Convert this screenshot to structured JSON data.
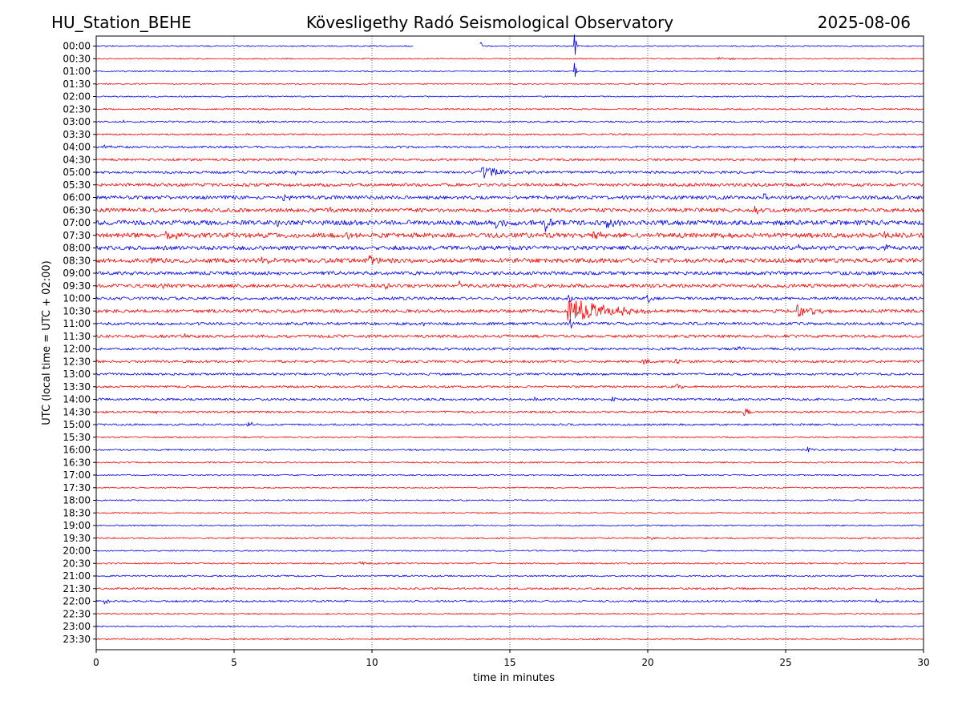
{
  "header": {
    "station": "HU_Station_BEHE",
    "observatory": "Kövesligethy Radó Seismological Observatory",
    "date": "2025-08-06"
  },
  "chart_data": {
    "type": "line",
    "title": "Kövesligethy Radó Seismological Observatory",
    "xlabel": "time in minutes",
    "ylabel": "UTC (local time = UTC + 02:00)",
    "xlim": [
      0,
      30
    ],
    "x_ticks": [
      "0",
      "5",
      "10",
      "15",
      "20",
      "25",
      "30"
    ],
    "grid": "vertical dotted at each x tick",
    "row_colors": [
      "#0000ff",
      "#ff0000"
    ],
    "rows": [
      {
        "label": "00:00",
        "noise": 0.8,
        "gaps": [
          [
            11.5,
            13.9
          ]
        ],
        "events": [
          {
            "t": 13.9,
            "amp": 11,
            "dur": 0.1,
            "dir": "up"
          },
          {
            "t": 17.35,
            "amp": 14,
            "dur": 0.1,
            "dir": "both"
          }
        ]
      },
      {
        "label": "00:30",
        "noise": 0.8,
        "events": [
          {
            "t": 22.5,
            "amp": 2,
            "dur": 1.5
          }
        ]
      },
      {
        "label": "01:00",
        "noise": 0.8,
        "events": [
          {
            "t": 17.35,
            "amp": 10,
            "dur": 0.1,
            "dir": "both"
          }
        ]
      },
      {
        "label": "01:30",
        "noise": 0.8,
        "events": []
      },
      {
        "label": "02:00",
        "noise": 0.8,
        "events": []
      },
      {
        "label": "02:30",
        "noise": 0.9,
        "events": [
          {
            "t": 26.5,
            "amp": 2,
            "dur": 0.2
          }
        ]
      },
      {
        "label": "03:00",
        "noise": 1.0,
        "events": [
          {
            "t": 1.0,
            "amp": 3,
            "dur": 0.2
          },
          {
            "t": 5.9,
            "amp": 3,
            "dur": 0.2
          }
        ]
      },
      {
        "label": "03:30",
        "noise": 1.0,
        "events": [
          {
            "t": 12.0,
            "amp": 3,
            "dur": 0.2
          }
        ]
      },
      {
        "label": "04:00",
        "noise": 1.3,
        "events": [
          {
            "t": 0.3,
            "amp": 4,
            "dur": 0.3
          }
        ]
      },
      {
        "label": "04:30",
        "noise": 1.5,
        "events": [
          {
            "t": 25.3,
            "amp": 3,
            "dur": 0.6
          }
        ]
      },
      {
        "label": "05:00",
        "noise": 1.6,
        "events": [
          {
            "t": 14.0,
            "amp": 7,
            "dur": 2.0
          },
          {
            "t": 7.2,
            "amp": 3,
            "dur": 0.3
          }
        ]
      },
      {
        "label": "05:30",
        "noise": 2.0,
        "events": []
      },
      {
        "label": "06:00",
        "noise": 2.2,
        "events": [
          {
            "t": 6.8,
            "amp": 4,
            "dur": 0.5
          },
          {
            "t": 24.2,
            "amp": 6,
            "dur": 0.4
          }
        ]
      },
      {
        "label": "06:30",
        "noise": 2.4,
        "events": [
          {
            "t": 23.9,
            "amp": 9,
            "dur": 0.4
          },
          {
            "t": 8.5,
            "amp": 3,
            "dur": 0.4
          }
        ]
      },
      {
        "label": "07:00",
        "noise": 3.0,
        "events": [
          {
            "t": 14.5,
            "amp": 8,
            "dur": 0.9
          },
          {
            "t": 16.3,
            "amp": 12,
            "dur": 0.4
          },
          {
            "t": 18.5,
            "amp": 6,
            "dur": 1.0
          },
          {
            "t": 6.6,
            "amp": 5,
            "dur": 0.2
          }
        ]
      },
      {
        "label": "07:30",
        "noise": 3.0,
        "events": [
          {
            "t": 2.5,
            "amp": 5,
            "dur": 0.9
          },
          {
            "t": 9.0,
            "amp": 5,
            "dur": 0.7
          },
          {
            "t": 18.0,
            "amp": 5,
            "dur": 0.8
          },
          {
            "t": 28.6,
            "amp": 5,
            "dur": 0.5
          }
        ]
      },
      {
        "label": "08:00",
        "noise": 2.6,
        "events": [
          {
            "t": 25.4,
            "amp": 6,
            "dur": 0.5
          },
          {
            "t": 28.6,
            "amp": 5,
            "dur": 0.3
          },
          {
            "t": 6.3,
            "amp": 4,
            "dur": 0.3
          }
        ]
      },
      {
        "label": "08:30",
        "noise": 2.8,
        "events": [
          {
            "t": 9.9,
            "amp": 6,
            "dur": 0.6
          },
          {
            "t": 2.0,
            "amp": 5,
            "dur": 0.6
          },
          {
            "t": 6.0,
            "amp": 4,
            "dur": 1.0
          }
        ]
      },
      {
        "label": "09:00",
        "noise": 2.2,
        "events": [
          {
            "t": 8.5,
            "amp": 4,
            "dur": 0.5
          }
        ]
      },
      {
        "label": "09:30",
        "noise": 2.2,
        "events": [
          {
            "t": 13.2,
            "amp": 5,
            "dur": 0.2
          },
          {
            "t": 2.3,
            "amp": 4,
            "dur": 0.5
          },
          {
            "t": 10.5,
            "amp": 4,
            "dur": 0.6
          }
        ]
      },
      {
        "label": "10:00",
        "noise": 1.8,
        "events": [
          {
            "t": 20.0,
            "amp": 7,
            "dur": 0.3
          },
          {
            "t": 10.7,
            "amp": 4,
            "dur": 0.2
          },
          {
            "t": 17.1,
            "amp": 14,
            "dur": 0.2
          }
        ]
      },
      {
        "label": "10:30",
        "noise": 2.0,
        "events": [
          {
            "t": 17.1,
            "amp": 18,
            "dur": 3.0
          },
          {
            "t": 25.4,
            "amp": 8,
            "dur": 1.5
          }
        ]
      },
      {
        "label": "11:00",
        "noise": 1.8,
        "events": [
          {
            "t": 11.8,
            "amp": 5,
            "dur": 0.2
          },
          {
            "t": 17.2,
            "amp": 6,
            "dur": 0.4
          }
        ]
      },
      {
        "label": "11:30",
        "noise": 1.8,
        "events": [
          {
            "t": 3.2,
            "amp": 3,
            "dur": 0.4
          }
        ]
      },
      {
        "label": "12:00",
        "noise": 1.6,
        "events": [
          {
            "t": 23.3,
            "amp": 4,
            "dur": 0.3
          }
        ]
      },
      {
        "label": "12:30",
        "noise": 1.6,
        "events": [
          {
            "t": 19.8,
            "amp": 3,
            "dur": 0.6
          },
          {
            "t": 21.0,
            "amp": 3,
            "dur": 0.4
          }
        ]
      },
      {
        "label": "13:00",
        "noise": 1.4,
        "events": []
      },
      {
        "label": "13:30",
        "noise": 1.3,
        "events": [
          {
            "t": 21.0,
            "amp": 9,
            "dur": 0.25
          }
        ]
      },
      {
        "label": "14:00",
        "noise": 1.4,
        "events": [
          {
            "t": 15.9,
            "amp": 5,
            "dur": 0.2
          },
          {
            "t": 18.7,
            "amp": 4,
            "dur": 0.2
          }
        ]
      },
      {
        "label": "14:30",
        "noise": 1.2,
        "events": [
          {
            "t": 2.1,
            "amp": 7,
            "dur": 0.2
          },
          {
            "t": 23.5,
            "amp": 8,
            "dur": 0.25
          }
        ]
      },
      {
        "label": "15:00",
        "noise": 1.2,
        "events": [
          {
            "t": 5.5,
            "amp": 4,
            "dur": 0.4
          }
        ]
      },
      {
        "label": "15:30",
        "noise": 0.9,
        "events": []
      },
      {
        "label": "16:00",
        "noise": 1.0,
        "events": [
          {
            "t": 25.8,
            "amp": 4,
            "dur": 0.2
          },
          {
            "t": 28.9,
            "amp": 3,
            "dur": 0.4
          }
        ]
      },
      {
        "label": "16:30",
        "noise": 0.9,
        "events": []
      },
      {
        "label": "17:00",
        "noise": 0.8,
        "events": []
      },
      {
        "label": "17:30",
        "noise": 0.8,
        "events": []
      },
      {
        "label": "18:00",
        "noise": 0.8,
        "events": []
      },
      {
        "label": "18:30",
        "noise": 0.8,
        "events": []
      },
      {
        "label": "19:00",
        "noise": 0.8,
        "events": []
      },
      {
        "label": "19:30",
        "noise": 0.9,
        "events": [
          {
            "t": 20.0,
            "amp": 2,
            "dur": 1.0
          }
        ]
      },
      {
        "label": "20:00",
        "noise": 0.8,
        "events": []
      },
      {
        "label": "20:30",
        "noise": 0.9,
        "events": [
          {
            "t": 9.6,
            "amp": 2,
            "dur": 0.6
          }
        ]
      },
      {
        "label": "21:00",
        "noise": 1.0,
        "events": []
      },
      {
        "label": "21:30",
        "noise": 1.2,
        "events": []
      },
      {
        "label": "22:00",
        "noise": 1.2,
        "events": [
          {
            "t": 0.3,
            "amp": 3,
            "dur": 0.3
          },
          {
            "t": 28.3,
            "amp": 3,
            "dur": 0.5
          }
        ]
      },
      {
        "label": "22:30",
        "noise": 0.9,
        "events": []
      },
      {
        "label": "23:00",
        "noise": 0.9,
        "events": []
      },
      {
        "label": "23:30",
        "noise": 1.0,
        "events": []
      }
    ]
  }
}
